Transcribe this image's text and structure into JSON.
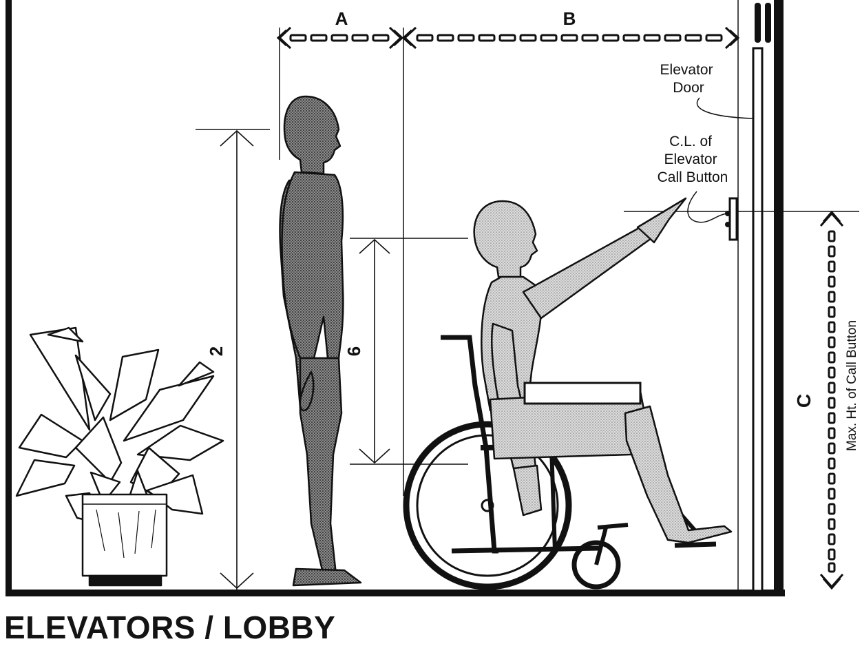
{
  "title": "ELEVATORS / LOBBY",
  "dimensions": {
    "a": "A",
    "b": "B",
    "c": "C",
    "two": "2",
    "six": "6"
  },
  "labels": {
    "elevator_door": [
      "Elevator",
      "Door"
    ],
    "call_button": [
      "C.L. of",
      "Elevator",
      "Call Button"
    ],
    "max_height": "Max. Ht. of Call Button"
  },
  "colors": {
    "ink": "#111111",
    "standing_figure": "#6e6e6e",
    "wheelchair_figure": "#c4c4c4",
    "background": "#ffffff"
  }
}
